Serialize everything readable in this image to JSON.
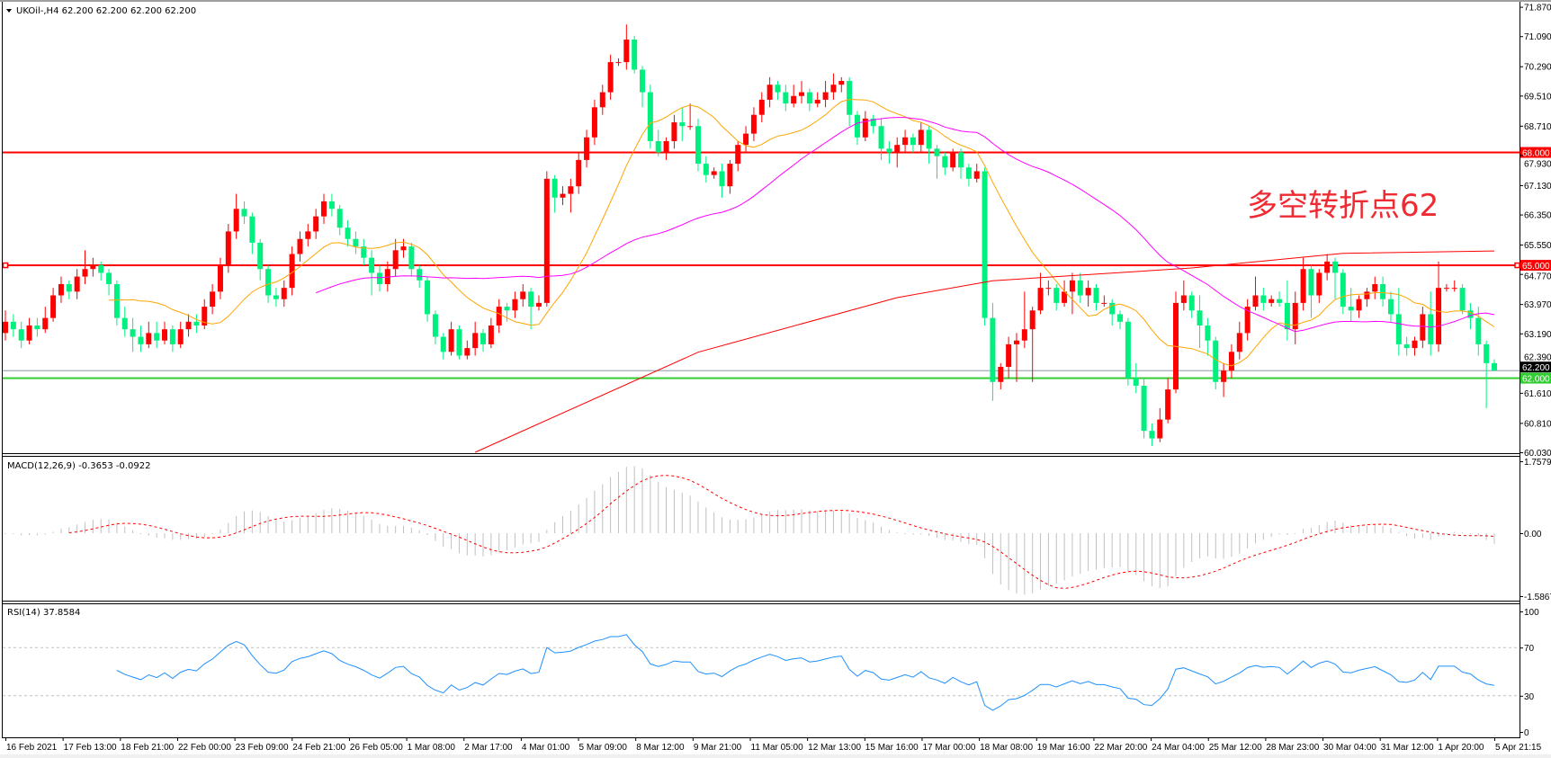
{
  "header": {
    "title": "UKOil-,H4  62.200 62.200 62.200 62.200"
  },
  "annotation": {
    "text": "多空转折点62",
    "color": "#ee2a33"
  },
  "colors": {
    "up_candle": "#ff0000",
    "down_candle": "#00f080",
    "ma_fast": "#ffa500",
    "ma_mid": "#ff00ff",
    "ma_long": "#ff0000",
    "resistance": "#ff0000",
    "support": "#32cd32",
    "bid_line": "#8a96a3",
    "macd_hist": "#c0c0c0",
    "macd_signal": "#ff0000",
    "rsi_line": "#1e90ff"
  },
  "chart_data": [
    {
      "type": "candlestick",
      "title": "UKOil-,H4",
      "ylim": [
        60.03,
        71.87
      ],
      "price_ticks": [
        "71.870",
        "71.090",
        "70.290",
        "69.510",
        "68.710",
        "67.930",
        "67.130",
        "66.350",
        "65.550",
        "64.770",
        "63.970",
        "63.190",
        "62.390",
        "61.610",
        "60.810",
        "60.030"
      ],
      "horizontal_lines": [
        {
          "value": 68.0,
          "label": "68.000",
          "color": "#ff0000"
        },
        {
          "value": 65.0,
          "label": "65.000",
          "color": "#ff0000"
        },
        {
          "value": 62.0,
          "label": "62.000",
          "color": "#32cd32"
        }
      ],
      "bid": {
        "value": 62.2,
        "label": "62.200"
      },
      "time_labels": [
        "16 Feb 2021",
        "17 Feb 13:00",
        "18 Feb 21:00",
        "22 Feb 00:00",
        "23 Feb 09:00",
        "24 Feb 21:00",
        "26 Feb 05:00",
        "1 Mar 08:00",
        "2 Mar 17:00",
        "4 Mar 01:00",
        "5 Mar 09:00",
        "8 Mar 12:00",
        "9 Mar 21:00",
        "11 Mar 05:00",
        "12 Mar 13:00",
        "15 Mar 16:00",
        "17 Mar 00:00",
        "18 Mar 08:00",
        "19 Mar 16:00",
        "22 Mar 20:00",
        "24 Mar 04:00",
        "25 Mar 12:00",
        "28 Mar 23:00",
        "30 Mar 04:00",
        "31 Mar 12:00",
        "1 Apr 20:00",
        "5 Apr 21:15"
      ],
      "ohlc": [
        [
          63.2,
          63.8,
          63.0,
          63.5
        ],
        [
          63.5,
          63.7,
          63.1,
          63.3
        ],
        [
          63.3,
          63.5,
          62.8,
          63.0
        ],
        [
          63.0,
          63.6,
          62.9,
          63.4
        ],
        [
          63.4,
          63.6,
          63.1,
          63.3
        ],
        [
          63.3,
          63.9,
          63.2,
          63.6
        ],
        [
          63.6,
          64.4,
          63.5,
          64.2
        ],
        [
          64.2,
          64.7,
          64.0,
          64.5
        ],
        [
          64.5,
          64.6,
          64.1,
          64.3
        ],
        [
          64.3,
          64.9,
          64.1,
          64.7
        ],
        [
          64.7,
          65.4,
          64.5,
          64.9
        ],
        [
          64.9,
          65.2,
          64.7,
          65.0
        ],
        [
          65.0,
          65.1,
          64.6,
          64.8
        ],
        [
          64.8,
          64.9,
          64.2,
          64.5
        ],
        [
          64.5,
          64.6,
          63.4,
          63.6
        ],
        [
          63.6,
          63.9,
          63.1,
          63.3
        ],
        [
          63.3,
          63.6,
          62.7,
          63.1
        ],
        [
          63.1,
          63.4,
          62.7,
          62.9
        ],
        [
          62.9,
          63.5,
          62.8,
          63.2
        ],
        [
          63.2,
          63.5,
          62.8,
          63.0
        ],
        [
          63.0,
          63.5,
          62.9,
          63.3
        ],
        [
          63.3,
          63.4,
          62.7,
          62.9
        ],
        [
          62.9,
          63.5,
          62.8,
          63.3
        ],
        [
          63.3,
          63.7,
          63.1,
          63.5
        ],
        [
          63.5,
          63.7,
          63.2,
          63.4
        ],
        [
          63.4,
          64.1,
          63.3,
          63.9
        ],
        [
          63.9,
          64.5,
          63.7,
          64.3
        ],
        [
          64.3,
          65.2,
          64.1,
          65.0
        ],
        [
          65.0,
          66.1,
          64.8,
          65.9
        ],
        [
          65.9,
          66.9,
          65.7,
          66.5
        ],
        [
          66.5,
          66.7,
          66.1,
          66.3
        ],
        [
          66.3,
          66.4,
          65.3,
          65.6
        ],
        [
          65.6,
          65.7,
          64.6,
          64.9
        ],
        [
          64.9,
          65.0,
          64.0,
          64.2
        ],
        [
          64.2,
          64.4,
          63.9,
          64.1
        ],
        [
          64.1,
          64.6,
          63.9,
          64.4
        ],
        [
          64.4,
          65.5,
          64.2,
          65.3
        ],
        [
          65.3,
          65.9,
          65.1,
          65.7
        ],
        [
          65.7,
          66.1,
          65.5,
          65.9
        ],
        [
          65.9,
          66.5,
          65.7,
          66.3
        ],
        [
          66.3,
          66.9,
          66.1,
          66.7
        ],
        [
          66.7,
          66.9,
          66.3,
          66.5
        ],
        [
          66.5,
          66.6,
          65.8,
          66.0
        ],
        [
          66.0,
          66.2,
          65.5,
          65.7
        ],
        [
          65.7,
          65.9,
          65.3,
          65.5
        ],
        [
          65.5,
          65.7,
          65.0,
          65.2
        ],
        [
          65.2,
          65.4,
          64.2,
          64.8
        ],
        [
          64.8,
          65.0,
          64.3,
          64.5
        ],
        [
          64.5,
          65.1,
          64.3,
          64.9
        ],
        [
          64.9,
          65.7,
          64.7,
          65.4
        ],
        [
          65.4,
          65.7,
          65.2,
          65.5
        ],
        [
          65.5,
          65.6,
          64.7,
          64.9
        ],
        [
          64.9,
          65.0,
          64.4,
          64.6
        ],
        [
          64.6,
          64.7,
          63.5,
          63.7
        ],
        [
          63.7,
          63.8,
          62.9,
          63.1
        ],
        [
          63.1,
          63.2,
          62.5,
          62.7
        ],
        [
          62.7,
          63.5,
          62.6,
          63.3
        ],
        [
          63.3,
          63.4,
          62.5,
          62.6
        ],
        [
          62.6,
          63.0,
          62.5,
          62.8
        ],
        [
          62.8,
          63.5,
          62.6,
          63.2
        ],
        [
          63.2,
          63.3,
          62.7,
          62.9
        ],
        [
          62.9,
          63.6,
          62.8,
          63.4
        ],
        [
          63.4,
          64.1,
          63.2,
          63.9
        ],
        [
          63.9,
          64.0,
          63.5,
          63.8
        ],
        [
          63.8,
          64.3,
          63.6,
          64.1
        ],
        [
          64.1,
          64.5,
          63.9,
          64.3
        ],
        [
          64.3,
          64.4,
          63.3,
          63.9
        ],
        [
          63.9,
          64.2,
          63.8,
          64.0
        ],
        [
          64.0,
          67.5,
          63.9,
          67.3
        ],
        [
          67.3,
          67.4,
          66.4,
          66.8
        ],
        [
          66.8,
          67.1,
          66.6,
          66.9
        ],
        [
          66.9,
          67.3,
          66.4,
          67.1
        ],
        [
          67.1,
          68.0,
          66.9,
          67.8
        ],
        [
          67.8,
          68.6,
          67.6,
          68.4
        ],
        [
          68.4,
          69.4,
          68.2,
          69.2
        ],
        [
          69.2,
          69.8,
          69.0,
          69.6
        ],
        [
          69.6,
          70.6,
          69.4,
          70.4
        ],
        [
          70.4,
          70.5,
          70.3,
          70.4
        ],
        [
          70.4,
          71.4,
          70.2,
          71.0
        ],
        [
          71.0,
          71.1,
          70.1,
          70.2
        ],
        [
          70.2,
          70.3,
          69.2,
          69.6
        ],
        [
          69.6,
          69.8,
          68.1,
          68.3
        ],
        [
          68.3,
          68.6,
          67.9,
          68.0
        ],
        [
          68.0,
          68.4,
          67.8,
          68.3
        ],
        [
          68.3,
          69.0,
          68.1,
          68.8
        ],
        [
          68.8,
          69.2,
          68.3,
          68.7
        ],
        [
          68.7,
          69.3,
          68.6,
          68.7
        ],
        [
          68.7,
          68.9,
          67.5,
          67.7
        ],
        [
          67.7,
          67.9,
          67.2,
          67.4
        ],
        [
          67.4,
          67.6,
          67.3,
          67.5
        ],
        [
          67.5,
          67.7,
          66.8,
          67.1
        ],
        [
          67.1,
          67.8,
          66.9,
          67.7
        ],
        [
          67.7,
          68.3,
          67.5,
          68.2
        ],
        [
          68.2,
          68.7,
          68.0,
          68.5
        ],
        [
          68.5,
          69.2,
          68.3,
          69.0
        ],
        [
          69.0,
          69.6,
          68.8,
          69.4
        ],
        [
          69.4,
          70.0,
          69.2,
          69.8
        ],
        [
          69.8,
          69.9,
          69.4,
          69.6
        ],
        [
          69.6,
          69.8,
          69.1,
          69.3
        ],
        [
          69.3,
          69.8,
          69.2,
          69.5
        ],
        [
          69.5,
          69.9,
          69.3,
          69.6
        ],
        [
          69.6,
          69.7,
          69.1,
          69.3
        ],
        [
          69.3,
          69.6,
          69.2,
          69.4
        ],
        [
          69.4,
          69.9,
          69.2,
          69.6
        ],
        [
          69.6,
          70.1,
          69.4,
          69.8
        ],
        [
          69.8,
          70.0,
          69.6,
          69.9
        ],
        [
          69.9,
          70.0,
          68.7,
          69.0
        ],
        [
          69.0,
          69.1,
          68.2,
          68.4
        ],
        [
          68.4,
          69.1,
          68.3,
          68.9
        ],
        [
          68.9,
          69.0,
          68.5,
          68.7
        ],
        [
          68.7,
          68.9,
          67.8,
          68.1
        ],
        [
          68.1,
          68.3,
          67.7,
          68.0
        ],
        [
          68.0,
          68.4,
          67.6,
          68.2
        ],
        [
          68.2,
          68.6,
          68.0,
          68.4
        ],
        [
          68.4,
          68.5,
          68.0,
          68.2
        ],
        [
          68.2,
          68.8,
          68.0,
          68.6
        ],
        [
          68.6,
          68.7,
          67.7,
          68.1
        ],
        [
          68.1,
          68.2,
          67.3,
          67.9
        ],
        [
          67.9,
          68.0,
          67.4,
          67.6
        ],
        [
          67.6,
          68.1,
          67.5,
          68.0
        ],
        [
          68.0,
          68.1,
          67.3,
          67.6
        ],
        [
          67.6,
          67.7,
          67.1,
          67.3
        ],
        [
          67.3,
          67.7,
          67.2,
          67.5
        ],
        [
          67.5,
          67.6,
          63.4,
          63.6
        ],
        [
          63.6,
          64.0,
          61.4,
          61.9
        ],
        [
          61.9,
          62.4,
          61.7,
          62.3
        ],
        [
          62.3,
          63.1,
          62.0,
          62.9
        ],
        [
          62.9,
          63.2,
          61.9,
          63.0
        ],
        [
          63.0,
          64.3,
          62.8,
          63.3
        ],
        [
          63.3,
          63.9,
          61.9,
          63.8
        ],
        [
          63.8,
          64.8,
          63.7,
          64.4
        ],
        [
          64.4,
          64.6,
          64.2,
          64.4
        ],
        [
          64.4,
          64.5,
          63.8,
          64.0
        ],
        [
          64.0,
          64.6,
          63.9,
          64.3
        ],
        [
          64.3,
          64.8,
          63.7,
          64.6
        ],
        [
          64.6,
          64.8,
          64.0,
          64.2
        ],
        [
          64.2,
          64.6,
          63.9,
          64.4
        ],
        [
          64.4,
          64.5,
          63.8,
          64.0
        ],
        [
          64.0,
          64.2,
          63.9,
          64.0
        ],
        [
          64.0,
          64.1,
          63.4,
          63.7
        ],
        [
          63.7,
          63.8,
          63.3,
          63.5
        ],
        [
          63.5,
          63.6,
          61.8,
          62.0
        ],
        [
          62.0,
          62.4,
          61.6,
          61.8
        ],
        [
          61.8,
          62.0,
          60.4,
          60.6
        ],
        [
          60.6,
          60.8,
          60.2,
          60.4
        ],
        [
          60.4,
          61.2,
          60.3,
          60.9
        ],
        [
          60.9,
          62.0,
          60.8,
          61.7
        ],
        [
          61.7,
          64.3,
          61.6,
          64.0
        ],
        [
          64.0,
          64.6,
          63.8,
          64.2
        ],
        [
          64.2,
          64.3,
          63.6,
          63.8
        ],
        [
          63.8,
          64.2,
          62.8,
          63.4
        ],
        [
          63.4,
          63.6,
          62.6,
          63.0
        ],
        [
          63.0,
          63.1,
          61.7,
          61.9
        ],
        [
          61.9,
          62.4,
          61.5,
          62.2
        ],
        [
          62.2,
          62.9,
          62.0,
          62.7
        ],
        [
          62.7,
          63.5,
          62.5,
          63.2
        ],
        [
          63.2,
          64.1,
          63.0,
          63.9
        ],
        [
          63.9,
          64.7,
          63.8,
          64.2
        ],
        [
          64.2,
          64.4,
          63.8,
          64.0
        ],
        [
          64.0,
          64.2,
          63.9,
          64.1
        ],
        [
          64.1,
          64.3,
          63.9,
          64.0
        ],
        [
          64.0,
          64.6,
          63.0,
          63.3
        ],
        [
          63.3,
          64.3,
          62.9,
          64.0
        ],
        [
          64.0,
          65.2,
          63.8,
          64.9
        ],
        [
          64.9,
          65.0,
          63.6,
          64.2
        ],
        [
          64.2,
          64.9,
          64.0,
          64.8
        ],
        [
          64.8,
          65.3,
          64.6,
          65.1
        ],
        [
          65.1,
          65.2,
          64.1,
          64.8
        ],
        [
          64.8,
          64.9,
          63.7,
          63.9
        ],
        [
          63.9,
          64.4,
          63.5,
          63.8
        ],
        [
          63.8,
          64.2,
          63.6,
          64.1
        ],
        [
          64.1,
          64.4,
          63.9,
          64.3
        ],
        [
          64.3,
          64.7,
          64.1,
          64.5
        ],
        [
          64.5,
          64.7,
          63.9,
          64.1
        ],
        [
          64.1,
          64.3,
          63.5,
          63.7
        ],
        [
          63.7,
          64.4,
          62.6,
          62.9
        ],
        [
          62.9,
          63.1,
          62.6,
          62.8
        ],
        [
          62.8,
          63.1,
          62.6,
          63.0
        ],
        [
          63.0,
          63.9,
          62.8,
          63.7
        ],
        [
          63.7,
          64.3,
          62.6,
          62.9
        ],
        [
          62.9,
          65.1,
          62.7,
          64.4
        ],
        [
          64.4,
          64.5,
          64.3,
          64.4
        ],
        [
          64.4,
          64.6,
          64.3,
          64.4
        ],
        [
          64.4,
          64.5,
          63.7,
          63.8
        ],
        [
          63.8,
          64.0,
          63.3,
          63.6
        ],
        [
          63.6,
          63.9,
          62.6,
          62.9
        ],
        [
          62.9,
          63.0,
          61.2,
          62.4
        ],
        [
          62.4,
          62.5,
          62.2,
          62.2
        ]
      ],
      "ma_long_points": [
        [
          59,
          60.03
        ],
        [
          87,
          62.69
        ],
        [
          112,
          64.14
        ],
        [
          124,
          64.59
        ],
        [
          149,
          64.93
        ],
        [
          168,
          65.32
        ],
        [
          187,
          65.38
        ]
      ]
    },
    {
      "type": "bar+line",
      "title": "MACD(12,26,9) -0.3653 -0.0922",
      "ylim": [
        -1.5867,
        1.7579
      ],
      "ticks": [
        "1.7579",
        "0.00",
        "-1.5867"
      ]
    },
    {
      "type": "line",
      "title": "RSI(14) 37.8584",
      "ylim": [
        0,
        100
      ],
      "ticks": [
        "100",
        "70",
        "30",
        "0"
      ],
      "levels": [
        70,
        30
      ]
    }
  ]
}
